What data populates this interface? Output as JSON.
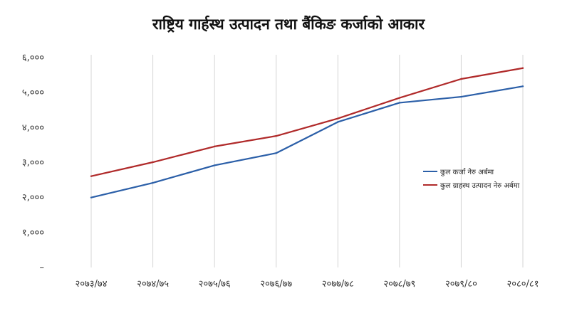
{
  "title": "राष्ट्रिय गार्हस्थ उत्पादन तथा बैंकिङ कर्जाको आकार",
  "chart_data": {
    "type": "line",
    "title": "राष्ट्रिय गार्हस्थ उत्पादन तथा बैंकिङ कर्जाको आकार",
    "xlabel": "",
    "ylabel": "",
    "categories": [
      "२०७३/७४",
      "२०७४/७५",
      "२०७५/७६",
      "२०७६/७७",
      "२०७७/७८",
      "२०७८/७९",
      "२०७९/८०",
      "२०८०/८१"
    ],
    "ylim": [
      0,
      6000
    ],
    "y_ticks": [
      {
        "value": 0,
        "label": "–"
      },
      {
        "value": 1000,
        "label": "१,०००"
      },
      {
        "value": 2000,
        "label": "२,०००"
      },
      {
        "value": 3000,
        "label": "३,०००"
      },
      {
        "value": 4000,
        "label": "४,०००"
      },
      {
        "value": 5000,
        "label": "५,०००"
      },
      {
        "value": 6000,
        "label": "६,०००"
      }
    ],
    "grid": "vertical",
    "legend_position": "right",
    "series": [
      {
        "name": "कुल कर्जा नेरु अर्बमा",
        "color": "#2b5fa8",
        "values": [
          2000,
          2420,
          2920,
          3270,
          4160,
          4710,
          4880,
          5180
        ]
      },
      {
        "name": "कुल ग्राहस्थ उत्पादन नेरु अर्बमा",
        "color": "#b02a2a",
        "values": [
          2610,
          3010,
          3460,
          3760,
          4260,
          4850,
          5390,
          5700
        ]
      }
    ]
  }
}
